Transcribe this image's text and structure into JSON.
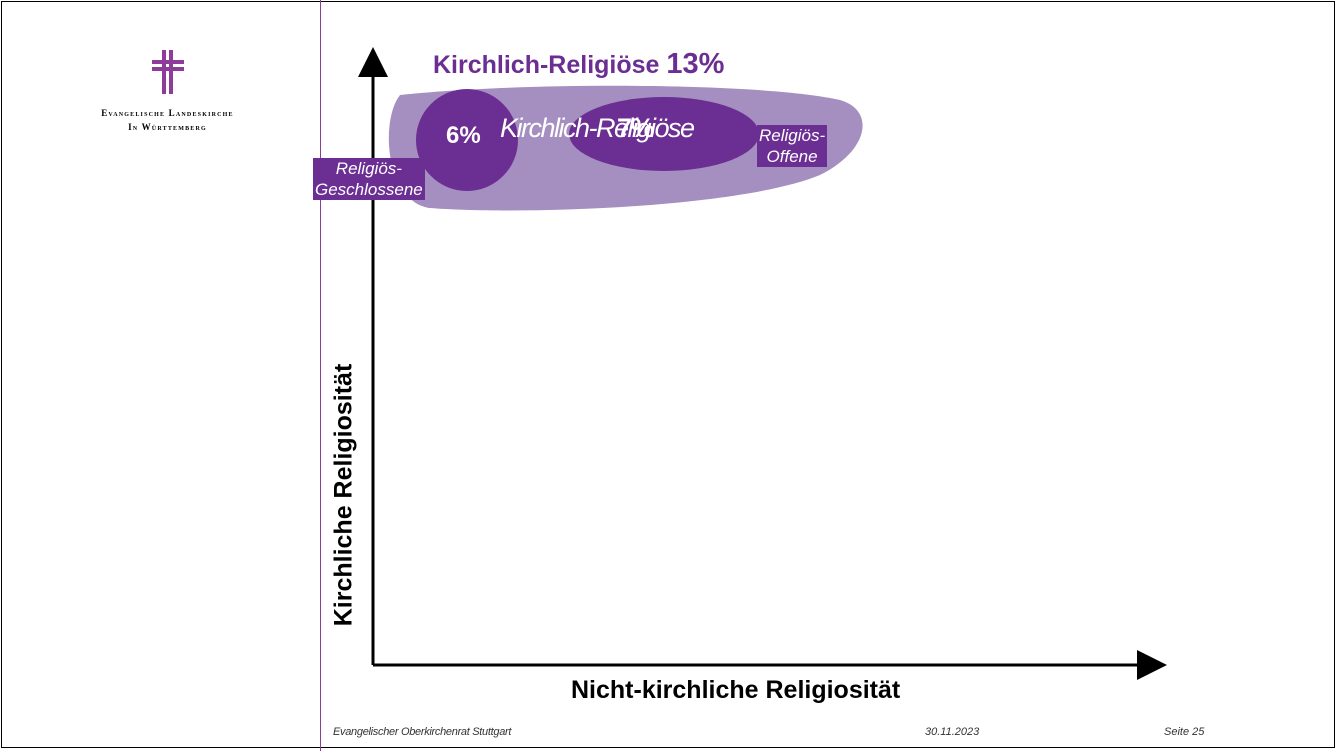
{
  "logo": {
    "line1": "Evangelische Landeskirche",
    "line2": "In Württemberg"
  },
  "diagram": {
    "outer_title": "Kirchlich-Religiöse",
    "outer_percent": "13%",
    "small_percent": "6%",
    "inner_title": "Kirchlich-Religiöse",
    "inner_percent": "7%",
    "label_open_1": "Religiös-",
    "label_open_2": "Offene",
    "label_closed_1": "Religiös-",
    "label_closed_2": "Geschlossene",
    "y_axis_label": "Kirchliche Religiosität",
    "x_axis_label": "Nicht-kirchliche Religiosität",
    "colors": {
      "outer_ellipse": "#a58fc0",
      "dark_purple": "#6b2e93",
      "axis": "#000000"
    }
  },
  "footer": {
    "org": "Evangelischer Oberkirchenrat Stuttgart",
    "date": "30.11.2023",
    "page": "Seite 25"
  }
}
